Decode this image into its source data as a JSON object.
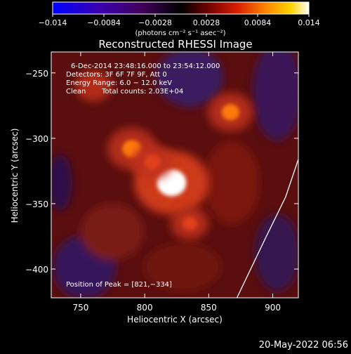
{
  "colorbar": {
    "tick_labels": [
      "−0.014",
      "−0.0084",
      "−0.0028",
      "0.0028",
      "0.0084",
      "0.014"
    ],
    "unit_label": "(photons cm⁻² s⁻¹ asec⁻²)",
    "range": [
      -0.014,
      0.014
    ],
    "colors": [
      "#0000ff",
      "#3a00b0",
      "#40005a",
      "#000000",
      "#6a0000",
      "#d81e00",
      "#ff8c00",
      "#ffd200",
      "#ffffff"
    ]
  },
  "footer": {
    "date": "20-May-2022 06:56"
  },
  "chart_data": {
    "type": "heatmap",
    "title": "Reconstructed RHESSI Image",
    "xlabel": "Heliocentric X (arcsec)",
    "ylabel": "Heliocentric Y (arcsec)",
    "xlim": [
      727,
      920
    ],
    "ylim": [
      -422,
      -234
    ],
    "x_ticks": [
      750,
      800,
      850,
      900
    ],
    "y_ticks": [
      -250,
      -300,
      -350,
      -400
    ],
    "x_tick_labels": [
      "750",
      "800",
      "850",
      "900"
    ],
    "y_tick_labels": [
      "−250",
      "−300",
      "−350",
      "−400"
    ],
    "annotations": {
      "time_range": "6-Dec-2014 23:48:16.000 to 23:54:12.000",
      "detectors": "Detectors: 3F 6F 7F 9F, Att 0",
      "energy": "Energy Range: 6.0 − 12.0 keV",
      "clean": "Clean",
      "total_counts": "Total counts: 2.03E+04",
      "peak": "Position of Peak = [821,−334]"
    },
    "peak": {
      "x": 821,
      "y": -334
    },
    "sources": [
      {
        "x": 821,
        "y": -334,
        "intensity": 0.014
      },
      {
        "x": 790,
        "y": -308,
        "intensity": 0.007
      },
      {
        "x": 806,
        "y": -318,
        "intensity": 0.005
      },
      {
        "x": 867,
        "y": -280,
        "intensity": 0.006
      },
      {
        "x": 760,
        "y": -260,
        "intensity": 0.0035
      },
      {
        "x": 835,
        "y": -365,
        "intensity": 0.004
      }
    ],
    "limb_curve": [
      {
        "x": 920,
        "y": -316
      },
      {
        "x": 910,
        "y": -345
      },
      {
        "x": 895,
        "y": -375
      },
      {
        "x": 872,
        "y": -422
      }
    ]
  }
}
